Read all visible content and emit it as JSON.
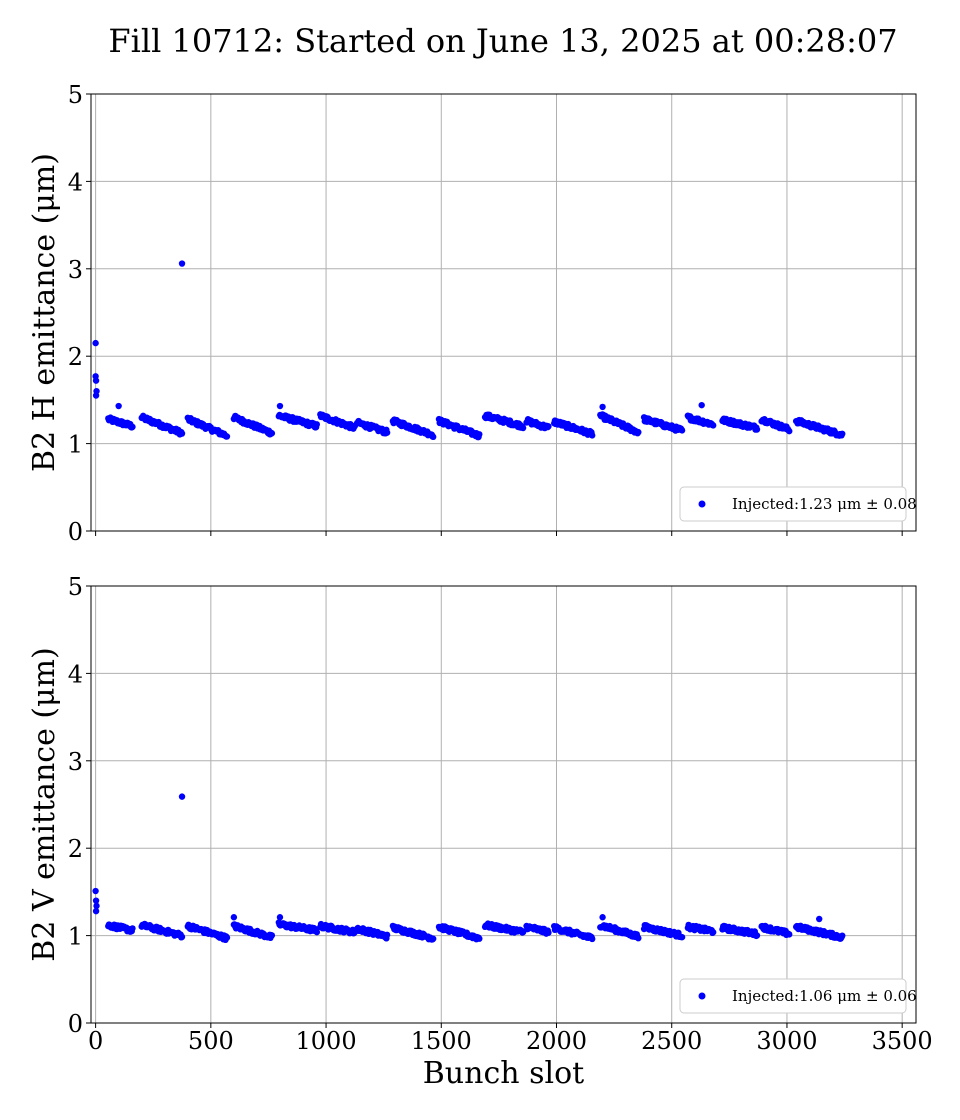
{
  "figure": {
    "title": "Fill 10712: Started on June 13, 2025 at 00:28:07"
  },
  "chart_data": [
    {
      "type": "scatter",
      "ylabel": "B2 H emittance (μm)",
      "xlabel": "",
      "xlim": [
        -20,
        3560
      ],
      "ylim": [
        0,
        5
      ],
      "xticks": [
        0,
        500,
        1000,
        1500,
        2000,
        2500,
        3000,
        3500
      ],
      "yticks": [
        0,
        1,
        2,
        3,
        4,
        5
      ],
      "show_xtick_labels": false,
      "grid": true,
      "legend": {
        "placement": "lower-right",
        "label": "Injected:1.23 μm ± 0.08"
      },
      "color": "#0000ff",
      "outliers": [
        {
          "x": 0,
          "y": 2.15
        },
        {
          "x": 0,
          "y": 1.77
        },
        {
          "x": 2,
          "y": 1.72
        },
        {
          "x": 4,
          "y": 1.6
        },
        {
          "x": 2,
          "y": 1.55
        },
        {
          "x": 375,
          "y": 3.06
        },
        {
          "x": 100,
          "y": 1.43
        },
        {
          "x": 800,
          "y": 1.43
        },
        {
          "x": 2200,
          "y": 1.42
        },
        {
          "x": 2630,
          "y": 1.44
        }
      ],
      "trains": [
        {
          "start": 55,
          "end": 160,
          "y0": 1.28,
          "y1": 1.2
        },
        {
          "start": 200,
          "end": 375,
          "y0": 1.3,
          "y1": 1.12
        },
        {
          "start": 400,
          "end": 570,
          "y0": 1.28,
          "y1": 1.09
        },
        {
          "start": 600,
          "end": 765,
          "y0": 1.3,
          "y1": 1.12
        },
        {
          "start": 795,
          "end": 960,
          "y0": 1.32,
          "y1": 1.2
        },
        {
          "start": 975,
          "end": 1125,
          "y0": 1.32,
          "y1": 1.18
        },
        {
          "start": 1135,
          "end": 1265,
          "y0": 1.24,
          "y1": 1.13
        },
        {
          "start": 1290,
          "end": 1465,
          "y0": 1.26,
          "y1": 1.1
        },
        {
          "start": 1490,
          "end": 1665,
          "y0": 1.26,
          "y1": 1.09
        },
        {
          "start": 1690,
          "end": 1855,
          "y0": 1.32,
          "y1": 1.2
        },
        {
          "start": 1870,
          "end": 1965,
          "y0": 1.26,
          "y1": 1.18
        },
        {
          "start": 1990,
          "end": 2155,
          "y0": 1.25,
          "y1": 1.11
        },
        {
          "start": 2190,
          "end": 2355,
          "y0": 1.32,
          "y1": 1.13
        },
        {
          "start": 2380,
          "end": 2545,
          "y0": 1.28,
          "y1": 1.15
        },
        {
          "start": 2570,
          "end": 2680,
          "y0": 1.3,
          "y1": 1.22
        },
        {
          "start": 2720,
          "end": 2870,
          "y0": 1.27,
          "y1": 1.18
        },
        {
          "start": 2890,
          "end": 3010,
          "y0": 1.28,
          "y1": 1.16
        },
        {
          "start": 3040,
          "end": 3240,
          "y0": 1.26,
          "y1": 1.1
        }
      ]
    },
    {
      "type": "scatter",
      "ylabel": "B2 V emittance (μm)",
      "xlabel": "Bunch slot",
      "xlim": [
        -20,
        3560
      ],
      "ylim": [
        0,
        5
      ],
      "xticks": [
        0,
        500,
        1000,
        1500,
        2000,
        2500,
        3000,
        3500
      ],
      "yticks": [
        0,
        1,
        2,
        3,
        4,
        5
      ],
      "show_xtick_labels": true,
      "grid": true,
      "legend": {
        "placement": "lower-right",
        "label": "Injected:1.06 μm ± 0.06"
      },
      "color": "#0000ff",
      "outliers": [
        {
          "x": 0,
          "y": 1.51
        },
        {
          "x": 2,
          "y": 1.4
        },
        {
          "x": 4,
          "y": 1.34
        },
        {
          "x": 2,
          "y": 1.28
        },
        {
          "x": 375,
          "y": 2.59
        },
        {
          "x": 600,
          "y": 1.21
        },
        {
          "x": 800,
          "y": 1.21
        },
        {
          "x": 2200,
          "y": 1.21
        },
        {
          "x": 3140,
          "y": 1.19
        }
      ],
      "trains": [
        {
          "start": 55,
          "end": 160,
          "y0": 1.12,
          "y1": 1.06
        },
        {
          "start": 200,
          "end": 375,
          "y0": 1.12,
          "y1": 1.0
        },
        {
          "start": 400,
          "end": 570,
          "y0": 1.11,
          "y1": 0.97
        },
        {
          "start": 600,
          "end": 765,
          "y0": 1.11,
          "y1": 0.98
        },
        {
          "start": 795,
          "end": 960,
          "y0": 1.13,
          "y1": 1.06
        },
        {
          "start": 975,
          "end": 1125,
          "y0": 1.11,
          "y1": 1.04
        },
        {
          "start": 1135,
          "end": 1265,
          "y0": 1.08,
          "y1": 0.99
        },
        {
          "start": 1290,
          "end": 1465,
          "y0": 1.09,
          "y1": 0.97
        },
        {
          "start": 1490,
          "end": 1665,
          "y0": 1.1,
          "y1": 0.97
        },
        {
          "start": 1690,
          "end": 1855,
          "y0": 1.12,
          "y1": 1.04
        },
        {
          "start": 1870,
          "end": 1965,
          "y0": 1.1,
          "y1": 1.04
        },
        {
          "start": 1990,
          "end": 2155,
          "y0": 1.09,
          "y1": 0.97
        },
        {
          "start": 2190,
          "end": 2355,
          "y0": 1.12,
          "y1": 0.99
        },
        {
          "start": 2380,
          "end": 2545,
          "y0": 1.1,
          "y1": 1.0
        },
        {
          "start": 2570,
          "end": 2680,
          "y0": 1.1,
          "y1": 1.05
        },
        {
          "start": 2720,
          "end": 2870,
          "y0": 1.09,
          "y1": 1.02
        },
        {
          "start": 2890,
          "end": 3010,
          "y0": 1.1,
          "y1": 1.02
        },
        {
          "start": 3040,
          "end": 3240,
          "y0": 1.1,
          "y1": 0.98
        }
      ]
    }
  ]
}
